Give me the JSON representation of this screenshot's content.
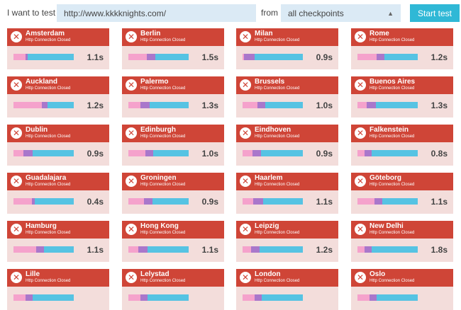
{
  "header": {
    "prefix_label": "I want to test",
    "url_value": "http://www.kkkknights.com/",
    "from_label": "from",
    "checkpoint_selected": "all checkpoints",
    "start_label": "Start test"
  },
  "colors": {
    "card_header": "#cf4537",
    "card_body": "#f3dddb",
    "dns": "#f5a2cc",
    "connect": "#a977cb",
    "rest": "#56c3e3",
    "accent": "#2fb8d6"
  },
  "checkpoints": [
    {
      "city": "Amsterdam",
      "status": "Http Connection Closed",
      "time": "1.1s",
      "dns": 0.2,
      "connect": 0.04
    },
    {
      "city": "Berlin",
      "status": "Http Connection Closed",
      "time": "1.5s",
      "dns": 0.3,
      "connect": 0.14
    },
    {
      "city": "Milan",
      "status": "Http Connection Closed",
      "time": "0.9s",
      "dns": 0.02,
      "connect": 0.18
    },
    {
      "city": "Rome",
      "status": "Http Connection Closed",
      "time": "1.2s",
      "dns": 0.32,
      "connect": 0.13
    },
    {
      "city": "Auckland",
      "status": "Http Connection Closed",
      "time": "1.2s",
      "dns": 0.47,
      "connect": 0.09
    },
    {
      "city": "Palermo",
      "status": "Http Connection Closed",
      "time": "1.3s",
      "dns": 0.2,
      "connect": 0.15
    },
    {
      "city": "Brussels",
      "status": "Http Connection Closed",
      "time": "1.0s",
      "dns": 0.25,
      "connect": 0.13
    },
    {
      "city": "Buenos Aires",
      "status": "Http Connection Closed",
      "time": "1.3s",
      "dns": 0.15,
      "connect": 0.15
    },
    {
      "city": "Dublin",
      "status": "Http Connection Closed",
      "time": "0.9s",
      "dns": 0.16,
      "connect": 0.15
    },
    {
      "city": "Edinburgh",
      "status": "Http Connection Closed",
      "time": "1.0s",
      "dns": 0.28,
      "connect": 0.13
    },
    {
      "city": "Eindhoven",
      "status": "Http Connection Closed",
      "time": "0.9s",
      "dns": 0.16,
      "connect": 0.14
    },
    {
      "city": "Falkenstein",
      "status": "Http Connection Closed",
      "time": "0.8s",
      "dns": 0.12,
      "connect": 0.12
    },
    {
      "city": "Guadalajara",
      "status": "Http Connection Closed",
      "time": "0.4s",
      "dns": 0.3,
      "connect": 0.05
    },
    {
      "city": "Groningen",
      "status": "Http Connection Closed",
      "time": "0.9s",
      "dns": 0.26,
      "connect": 0.14
    },
    {
      "city": "Haarlem",
      "status": "Http Connection Closed",
      "time": "1.1s",
      "dns": 0.18,
      "connect": 0.16
    },
    {
      "city": "Göteborg",
      "status": "Http Connection Closed",
      "time": "1.1s",
      "dns": 0.28,
      "connect": 0.13
    },
    {
      "city": "Hamburg",
      "status": "Http Connection Closed",
      "time": "1.1s",
      "dns": 0.38,
      "connect": 0.13
    },
    {
      "city": "Hong Kong",
      "status": "Http Connection Closed",
      "time": "1.1s",
      "dns": 0.16,
      "connect": 0.15
    },
    {
      "city": "Leipzig",
      "status": "Http Connection Closed",
      "time": "1.2s",
      "dns": 0.14,
      "connect": 0.14
    },
    {
      "city": "New Delhi",
      "status": "Http Connection Closed",
      "time": "1.8s",
      "dns": 0.12,
      "connect": 0.12
    },
    {
      "city": "Lille",
      "status": "Http Connection Closed",
      "time": "",
      "dns": 0.2,
      "connect": 0.12
    },
    {
      "city": "Lelystad",
      "status": "Http Connection Closed",
      "time": "",
      "dns": 0.2,
      "connect": 0.12
    },
    {
      "city": "London",
      "status": "Http Connection Closed",
      "time": "",
      "dns": 0.2,
      "connect": 0.12
    },
    {
      "city": "Oslo",
      "status": "Http Connection Closed",
      "time": "",
      "dns": 0.2,
      "connect": 0.12
    }
  ]
}
